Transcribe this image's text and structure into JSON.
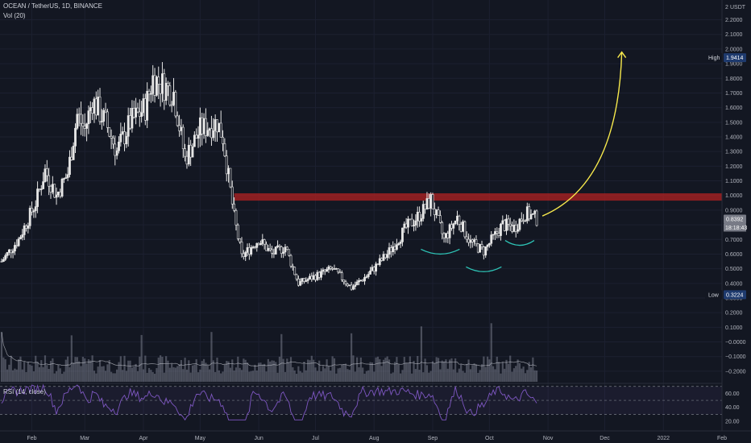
{
  "header": {
    "symbol_line": "OCEAN / TetherUS, 1D, BINANCE",
    "volume_indicator": "Vol (20)",
    "rsi_indicator": "RSI (14, close)"
  },
  "price_axis": {
    "currency": "USDT",
    "top_label": "2",
    "ticks": [
      "2.2000",
      "2.1000",
      "2.0000",
      "1.9000",
      "1.8000",
      "1.7000",
      "1.6000",
      "1.5000",
      "1.4000",
      "1.3000",
      "1.2000",
      "1.1000",
      "1.0000",
      "0.9000",
      "0.8000",
      "0.7000",
      "0.6000",
      "0.5000",
      "0.4000",
      "0.3000",
      "0.2000",
      "0.1000",
      "−0.0000",
      "−0.1000",
      "−0.2000"
    ]
  },
  "markers": {
    "high": {
      "label": "High",
      "value": "1.9414"
    },
    "low": {
      "label": "Low",
      "value": "0.3224"
    },
    "last": {
      "value": "0.8392",
      "countdown": "18:18:43"
    }
  },
  "rsi_axis": {
    "ticks": [
      "60.00",
      "40.00",
      "20.00"
    ]
  },
  "time_axis": {
    "months": [
      "Feb",
      "Mar",
      "Apr",
      "May",
      "Jun",
      "Jul",
      "Aug",
      "Sep",
      "Oct",
      "Nov",
      "Dec",
      "2022",
      "Feb"
    ]
  },
  "colors": {
    "background": "#131722",
    "up_candle": "#e6e6e6",
    "down_candle": "#e6e6e6",
    "resistance_zone": "#b22222",
    "projection_arrow": "#f7e94c",
    "cup_arcs": "#2ec4b6",
    "rsi_line": "#7e57c2",
    "volume_bar": "#8f93a2",
    "high_badge": "#1e3a6e",
    "low_badge": "#1e3a6e",
    "last_badge": "#787b86"
  },
  "chart_data": {
    "type": "candlestick",
    "title": "OCEAN / TetherUS, 1D, BINANCE",
    "y_range": [
      -0.25,
      2.28
    ],
    "rsi_range": [
      12,
      72
    ],
    "resistance_zone": [
      0.965,
      1.015
    ],
    "pattern_arcs_bottoms": [
      0.6,
      0.48,
      0.66
    ],
    "price_path": [
      {
        "date": "2021-01-16",
        "close": 0.55
      },
      {
        "date": "2021-01-25",
        "close": 0.7
      },
      {
        "date": "2021-02-03",
        "close": 0.95
      },
      {
        "date": "2021-02-08",
        "close": 1.17
      },
      {
        "date": "2021-02-14",
        "close": 1.0
      },
      {
        "date": "2021-02-20",
        "close": 1.15
      },
      {
        "date": "2021-02-25",
        "close": 1.55
      },
      {
        "date": "2021-03-01",
        "close": 1.45
      },
      {
        "date": "2021-03-05",
        "close": 1.65
      },
      {
        "date": "2021-03-12",
        "close": 1.5
      },
      {
        "date": "2021-03-18",
        "close": 1.3
      },
      {
        "date": "2021-03-25",
        "close": 1.5
      },
      {
        "date": "2021-04-02",
        "close": 1.6
      },
      {
        "date": "2021-04-06",
        "close": 1.8
      },
      {
        "date": "2021-04-12",
        "close": 1.75
      },
      {
        "date": "2021-04-17",
        "close": 1.7
      },
      {
        "date": "2021-04-23",
        "close": 1.25
      },
      {
        "date": "2021-05-01",
        "close": 1.45
      },
      {
        "date": "2021-05-10",
        "close": 1.5
      },
      {
        "date": "2021-05-13",
        "close": 1.4
      },
      {
        "date": "2021-05-19",
        "close": 0.85
      },
      {
        "date": "2021-05-23",
        "close": 0.58
      },
      {
        "date": "2021-06-01",
        "close": 0.7
      },
      {
        "date": "2021-06-08",
        "close": 0.6
      },
      {
        "date": "2021-06-15",
        "close": 0.65
      },
      {
        "date": "2021-06-22",
        "close": 0.4
      },
      {
        "date": "2021-07-01",
        "close": 0.45
      },
      {
        "date": "2021-07-10",
        "close": 0.5
      },
      {
        "date": "2021-07-20",
        "close": 0.37
      },
      {
        "date": "2021-07-28",
        "close": 0.45
      },
      {
        "date": "2021-08-08",
        "close": 0.6
      },
      {
        "date": "2021-08-18",
        "close": 0.78
      },
      {
        "date": "2021-08-26",
        "close": 0.88
      },
      {
        "date": "2021-08-31",
        "close": 0.97
      },
      {
        "date": "2021-09-07",
        "close": 0.7
      },
      {
        "date": "2021-09-14",
        "close": 0.85
      },
      {
        "date": "2021-09-21",
        "close": 0.68
      },
      {
        "date": "2021-09-28",
        "close": 0.62
      },
      {
        "date": "2021-10-08",
        "close": 0.8
      },
      {
        "date": "2021-10-14",
        "close": 0.78
      },
      {
        "date": "2021-10-20",
        "close": 0.88
      },
      {
        "date": "2021-10-26",
        "close": 0.84
      }
    ],
    "projection": {
      "from": [
        "2021-10-29",
        0.86
      ],
      "to": [
        "2021-12-10",
        1.98
      ]
    }
  }
}
